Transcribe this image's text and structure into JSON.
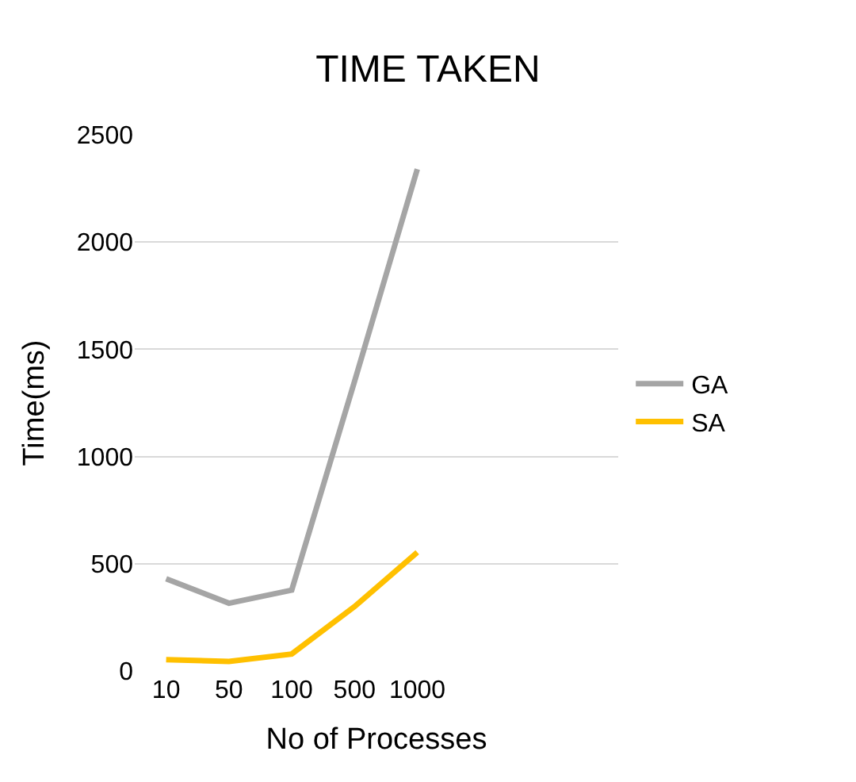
{
  "chart_data": {
    "type": "line",
    "title": "TIME TAKEN",
    "xlabel": "No of Processes",
    "ylabel": "Time(ms)",
    "categories": [
      "10",
      "50",
      "100",
      "500",
      "1000",
      null,
      null
    ],
    "series": [
      {
        "name": "GA",
        "color": "#a5a5a5",
        "values": [
          430,
          316,
          377,
          1350,
          2340,
          null,
          null
        ]
      },
      {
        "name": "SA",
        "color": "#ffc000",
        "values": [
          53,
          44,
          79,
          300,
          553,
          null,
          null
        ]
      }
    ],
    "ylim": [
      0,
      2500
    ],
    "yticks": [
      0,
      500,
      1000,
      1500,
      2000,
      2500
    ],
    "grid": "y",
    "legend": "right",
    "marker": "none",
    "line_style": "solid"
  }
}
